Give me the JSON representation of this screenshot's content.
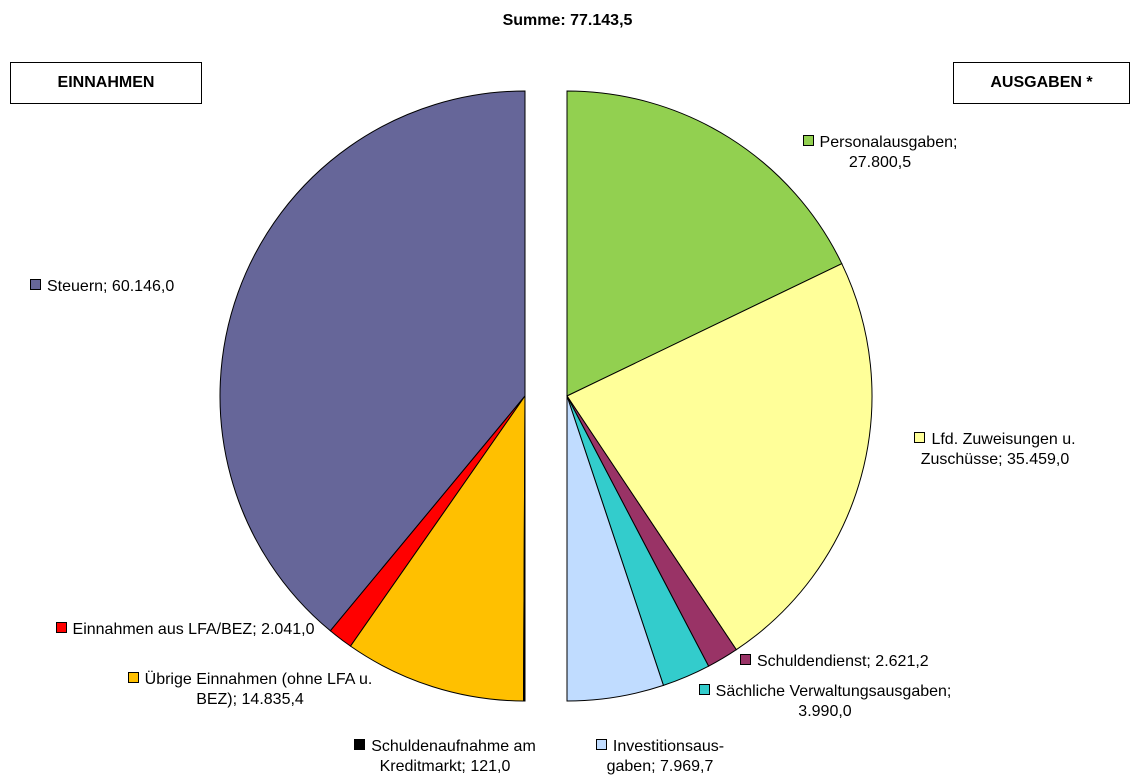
{
  "title": "Summe: 77.143,5",
  "chart_data": [
    {
      "type": "pie",
      "title": "EINNAHMEN",
      "values": [
        60146.0,
        2041.0,
        14835.4,
        121.0
      ],
      "value_labels": [
        "Steuern; 60.146,0",
        "Einnahmen aus LFA/BEZ; 2.041,0",
        "Übrige Einnahmen (ohne LFA u. BEZ); 14.835,4",
        "Schuldenaufnahme am Kreditmarkt; 121,0"
      ],
      "colors": [
        "#666699",
        "#ff0000",
        "#ffc000",
        "#000000"
      ]
    },
    {
      "type": "pie",
      "title": "AUSGABEN *",
      "values": [
        27800.5,
        35459.0,
        2621.2,
        3990.0,
        7969.7
      ],
      "value_labels": [
        "Personalausgaben; 27.800,5",
        "Lfd. Zuweisungen u. Zuschüsse; 35.459,0",
        "Schuldendienst; 2.621,2",
        "Sächliche Verwaltungsausgaben; 3.990,0",
        "Investitionsaus-gaben; 7.969,7"
      ],
      "colors": [
        "#92d050",
        "#ffff99",
        "#993366",
        "#33cccc",
        "#c0dcff"
      ]
    }
  ]
}
